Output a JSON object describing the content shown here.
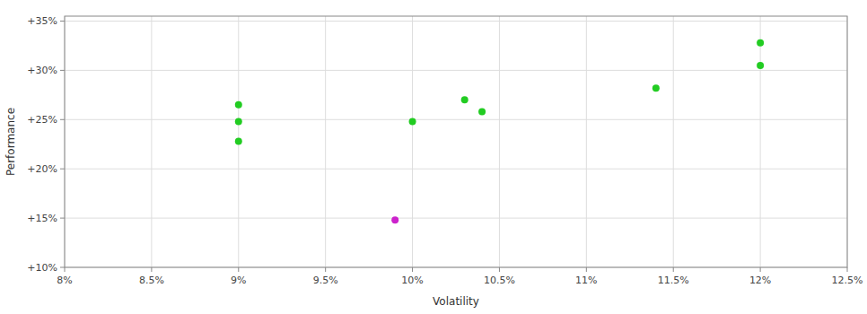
{
  "chart_data": {
    "type": "scatter",
    "xlabel": "Volatility",
    "ylabel": "Performance",
    "series": [
      {
        "color": "#22cc22",
        "x": [
          0.09,
          0.09,
          0.09,
          0.1,
          0.103,
          0.104,
          0.114,
          0.12,
          0.12
        ],
        "values": [
          0.265,
          0.248,
          0.228,
          0.248,
          0.27,
          0.258,
          0.282,
          0.328,
          0.305
        ]
      },
      {
        "color": "#cc22cc",
        "x": [
          0.099
        ],
        "values": [
          0.148
        ]
      }
    ],
    "xlim": [
      0.08,
      0.125
    ],
    "ylim": [
      0.1,
      0.355
    ],
    "xticks": [
      {
        "value": 0.08,
        "label": "8%"
      },
      {
        "value": 0.085,
        "label": "8.5%"
      },
      {
        "value": 0.09,
        "label": "9%"
      },
      {
        "value": 0.095,
        "label": "9.5%"
      },
      {
        "value": 0.1,
        "label": "10%"
      },
      {
        "value": 0.105,
        "label": "10.5%"
      },
      {
        "value": 0.11,
        "label": "11%"
      },
      {
        "value": 0.115,
        "label": "11.5%"
      },
      {
        "value": 0.12,
        "label": "12%"
      },
      {
        "value": 0.125,
        "label": "12.5%"
      }
    ],
    "yticks": [
      {
        "value": 0.1,
        "label": "+10%"
      },
      {
        "value": 0.15,
        "label": "+15%"
      },
      {
        "value": 0.2,
        "label": "+20%"
      },
      {
        "value": 0.25,
        "label": "+25%"
      },
      {
        "value": 0.3,
        "label": "+30%"
      },
      {
        "value": 0.35,
        "label": "+35%"
      }
    ],
    "grid": true
  }
}
